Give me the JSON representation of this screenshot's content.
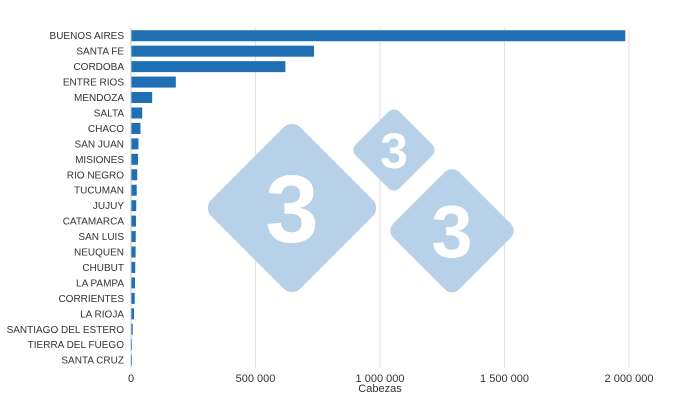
{
  "chart_data": {
    "type": "bar",
    "orientation": "horizontal",
    "categories": [
      "BUENOS AIRES",
      "SANTA FE",
      "CORDOBA",
      "ENTRE RIOS",
      "MENDOZA",
      "SALTA",
      "CHACO",
      "SAN JUAN",
      "MISIONES",
      "RIO NEGRO",
      "TUCUMAN",
      "JUJUY",
      "CATAMARCA",
      "SAN LUIS",
      "NEUQUEN",
      "CHUBUT",
      "LA PAMPA",
      "CORRIENTES",
      "LA RIOJA",
      "SANTIAGO DEL ESTERO",
      "TIERRA DEL FUEGO",
      "SANTA CRUZ"
    ],
    "values": [
      1985000,
      735000,
      620000,
      180000,
      85000,
      45000,
      38000,
      30000,
      28000,
      25000,
      23000,
      21000,
      20000,
      19000,
      18500,
      17000,
      16000,
      15000,
      12000,
      7000,
      3000,
      2000
    ],
    "title": "",
    "xlabel": "Cabezas",
    "ylabel": "",
    "xlim": [
      0,
      2000000
    ],
    "x_ticks": [
      {
        "value": 0,
        "label": "0"
      },
      {
        "value": 500000,
        "label": "500 000"
      },
      {
        "value": 1000000,
        "label": "1 000 000"
      },
      {
        "value": 1500000,
        "label": "1 500 000"
      },
      {
        "value": 2000000,
        "label": "2 000 000"
      }
    ],
    "grid": "vertical",
    "bar_color": "#1f6fb4",
    "grid_color": "#e2e2e2",
    "axis_color": "#c8c8c8",
    "text_color": "#333333"
  },
  "watermark": {
    "digits": [
      "3",
      "3",
      "3"
    ],
    "color": "#b7d1e8"
  }
}
